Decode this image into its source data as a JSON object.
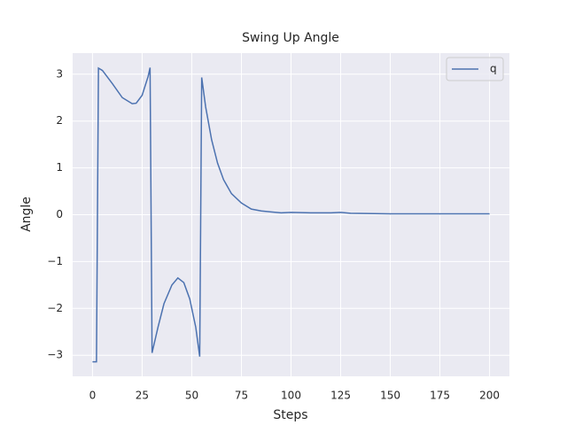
{
  "chart_data": {
    "type": "line",
    "title": "Swing Up Angle",
    "x_label": "Steps",
    "y_label": "Angle",
    "x": [
      0,
      1,
      2,
      3,
      5,
      10,
      15,
      20,
      22,
      25,
      28,
      29,
      30,
      33,
      36,
      40,
      43,
      46,
      49,
      52,
      54,
      55,
      57,
      60,
      63,
      66,
      70,
      75,
      80,
      85,
      90,
      95,
      100,
      110,
      120,
      125,
      130,
      150,
      175,
      200
    ],
    "series": [
      {
        "name": "q",
        "color": "#4c72b0",
        "values": [
          -3.14,
          -3.14,
          -3.14,
          3.13,
          3.08,
          2.8,
          2.5,
          2.37,
          2.38,
          2.55,
          2.95,
          3.14,
          -2.95,
          -2.4,
          -1.9,
          -1.5,
          -1.35,
          -1.45,
          -1.8,
          -2.4,
          -3.03,
          2.93,
          2.3,
          1.6,
          1.1,
          0.75,
          0.45,
          0.25,
          0.12,
          0.08,
          0.06,
          0.04,
          0.05,
          0.04,
          0.04,
          0.05,
          0.03,
          0.02,
          0.02,
          0.02
        ]
      }
    ],
    "xlim": [
      -10,
      210
    ],
    "ylim": [
      -3.45,
      3.45
    ],
    "xticks": [
      0,
      25,
      50,
      75,
      100,
      125,
      150,
      175,
      200
    ],
    "yticks": [
      {
        "value": -3,
        "label": "−3"
      },
      {
        "value": -2,
        "label": "−2"
      },
      {
        "value": -1,
        "label": "−1"
      },
      0,
      1,
      2,
      3
    ],
    "grid": true,
    "legend": "upper right"
  }
}
